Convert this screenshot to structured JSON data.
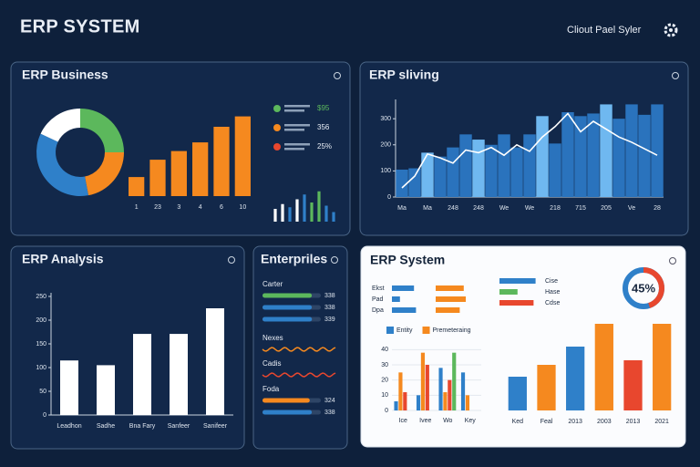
{
  "header": {
    "title": "ERP SYSTEM",
    "account": "Cliout Pael Syler"
  },
  "panels": [
    {
      "title": "ERP Business",
      "charts": [
        {
          "type": "donut",
          "values": [
            25,
            22,
            35,
            18
          ],
          "colors": [
            "#5cb85c",
            "#f5891f",
            "#2f80c9",
            "#ffffff"
          ]
        },
        {
          "type": "bar",
          "categories": [
            "1",
            "23",
            "3",
            "4",
            "6",
            "10"
          ],
          "values": [
            22,
            42,
            52,
            62,
            80,
            92
          ],
          "color": "#f5891f",
          "ylim": [
            0,
            100
          ]
        },
        {
          "type": "legend",
          "items": [
            {
              "color": "#5cb85c",
              "text": "$95"
            },
            {
              "color": "#f5891f",
              "text": "356"
            },
            {
              "color": "#e8472e",
              "text": "25%"
            }
          ]
        },
        {
          "type": "bar",
          "values": [
            40,
            55,
            45,
            70,
            85,
            60,
            95,
            50,
            30
          ],
          "colors": [
            "#ffffff",
            "#ffffff",
            "#2f80c9",
            "#ffffff",
            "#2f80c9",
            "#5cb85c",
            "#5cb85c",
            "#2f80c9",
            "#2f80c9"
          ],
          "ylim": [
            0,
            100
          ]
        }
      ]
    },
    {
      "title": "ERP sliving",
      "charts": [
        {
          "type": "bar-line",
          "categories": [
            "Ma",
            null,
            "Ma",
            null,
            "248",
            null,
            "248",
            null,
            "We",
            null,
            "We",
            null,
            "218",
            null,
            "715",
            null,
            "205",
            null,
            "Ve",
            null,
            "28"
          ],
          "values": [
            105,
            110,
            170,
            155,
            190,
            240,
            220,
            200,
            240,
            190,
            240,
            310,
            205,
            325,
            310,
            320,
            355,
            300,
            355,
            315,
            355
          ],
          "colors": [
            "#2a73bd",
            "#2a73bd",
            "#6fb8f0",
            "#2a73bd",
            "#2a73bd",
            "#2a73bd",
            "#6fb8f0",
            "#2a73bd",
            "#2a73bd",
            "#2a73bd",
            "#2a73bd",
            "#6fb8f0",
            "#2a73bd",
            "#2a73bd",
            "#2a73bd",
            "#2a73bd",
            "#6fb8f0",
            "#2a73bd",
            "#2a73bd",
            "#2a73bd",
            "#2a73bd"
          ],
          "line": {
            "color": "#ffffff",
            "values": [
              35,
              80,
              165,
              150,
              130,
              180,
              170,
              190,
              160,
              200,
              175,
              230,
              270,
              320,
              250,
              290,
              260,
              230,
              210,
              185,
              160
            ]
          },
          "ylim": [
            0,
            360
          ],
          "yticks": [
            0,
            100,
            200,
            300
          ]
        }
      ]
    },
    {
      "title": "ERP Analysis",
      "charts": [
        {
          "type": "bar",
          "categories": [
            "Leadhon",
            "Sadhe",
            "Bna Fary",
            "Sanfeer",
            "Sanifeer"
          ],
          "values": [
            115,
            105,
            171,
            171,
            225
          ],
          "color": "#ffffff",
          "ylim": [
            0,
            250
          ],
          "yticks": [
            0,
            50,
            100,
            150,
            200,
            250
          ]
        }
      ]
    },
    {
      "title": "Enterpriles",
      "charts": [
        {
          "type": "progress",
          "xlim": [
            0,
            400
          ],
          "groups": [
            {
              "label": "Carter",
              "bars": [
                {
                  "value": 338,
                  "color": "#5cb85c"
                },
                {
                  "value": 338,
                  "color": "#2f80c9"
                },
                {
                  "value": 339,
                  "color": "#2f80c9"
                }
              ]
            },
            {
              "label": "Nexes",
              "wave": "#f5891f"
            },
            {
              "label": "Cadis",
              "wave": "#e8472e"
            },
            {
              "label": "Foda",
              "bars": [
                {
                  "value": 324,
                  "color": "#f5891f"
                },
                {
                  "value": 338,
                  "color": "#2f80c9"
                }
              ]
            }
          ]
        }
      ]
    },
    {
      "title": "ERP System",
      "charts": [
        {
          "type": "hbar-pair",
          "categories": [
            "Ekst",
            "Pad",
            "Dpa"
          ],
          "xlim": [
            0,
            100
          ],
          "series": [
            {
              "color": "#2f80c9",
              "values": [
                55,
                20,
                60
              ]
            },
            {
              "color": "#f5891f",
              "values": [
                70,
                75,
                60
              ]
            }
          ]
        },
        {
          "type": "hbar",
          "categories": [
            "Cise",
            "Hase",
            "Cdse"
          ],
          "values": [
            90,
            45,
            85
          ],
          "colors": [
            "#2f80c9",
            "#5cb85c",
            "#e8472e"
          ],
          "xlim": [
            0,
            100
          ]
        },
        {
          "type": "gauge",
          "value": 45,
          "value_label": "45%",
          "color": "#e8472e",
          "track": "#2f80c9"
        },
        {
          "type": "grouped-bar",
          "categories": [
            "Ice",
            "Ivee",
            "Wo",
            "Key"
          ],
          "ylim": [
            0,
            45
          ],
          "yticks": [
            0,
            10,
            20,
            30,
            40
          ],
          "series": [
            {
              "name": "Entity",
              "color": "#2f80c9",
              "values": [
                6,
                10,
                28,
                25
              ]
            },
            {
              "name": "Premeteraing",
              "color": "#f5891f",
              "values": [
                25,
                38,
                12,
                10
              ]
            },
            {
              "color": "#e8472e",
              "values": [
                12,
                30,
                20,
                null
              ]
            },
            {
              "color": "#5cb85c",
              "values": [
                null,
                null,
                38,
                null
              ]
            }
          ]
        },
        {
          "type": "bar",
          "categories": [
            "Ked",
            "Feal",
            "2013",
            "2003",
            "2013",
            "2021"
          ],
          "values": [
            37,
            50,
            70,
            95,
            55,
            95
          ],
          "colors": [
            "#2f80c9",
            "#f5891f",
            "#2f80c9",
            "#f5891f",
            "#e8472e",
            "#f5891f"
          ],
          "ylim": [
            0,
            100
          ]
        }
      ]
    }
  ]
}
